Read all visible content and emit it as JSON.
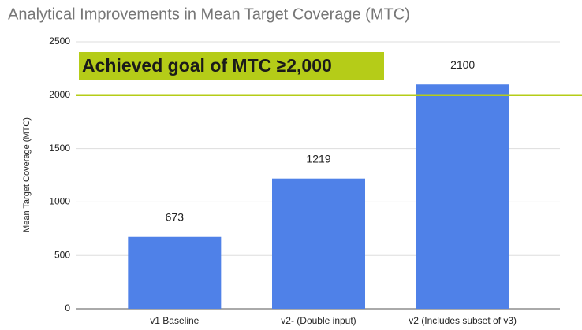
{
  "chart_data": {
    "type": "bar",
    "title": "Analytical Improvements in Mean Target Coverage (MTC)",
    "y_label": "Mean Target Coverage (MTC)",
    "categories": [
      "v1 Baseline",
      "v2- (Double input)",
      "v2 (Includes subset of v3)"
    ],
    "values": [
      673,
      1219,
      2100
    ],
    "color": "#4f81e8",
    "ylim": [
      0,
      2500
    ],
    "yticks": [
      0,
      500,
      1000,
      1500,
      2000,
      2500
    ],
    "grid": true,
    "goal_line": {
      "value": 2000,
      "color": "#b5cc18"
    },
    "annotation": "Achieved goal of MTC ≥2,000"
  }
}
